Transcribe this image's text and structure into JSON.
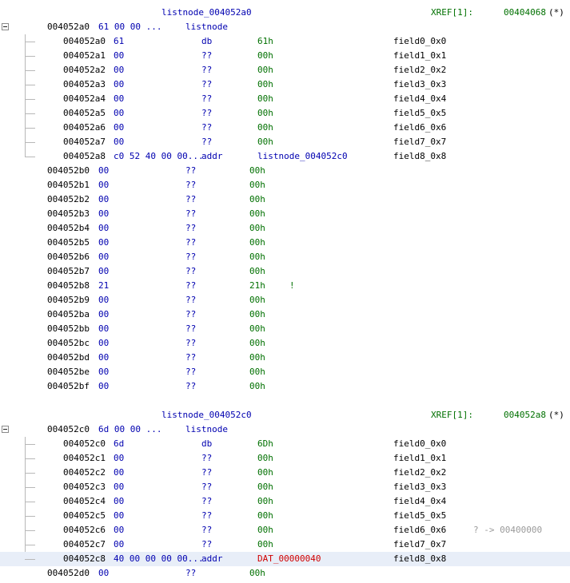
{
  "structs": [
    {
      "label": "listnode_004052a0",
      "xref_label": "XREF[1]:",
      "xref_addr": "00404068",
      "xref_suffix": "(*)",
      "header": {
        "addr": "004052a0",
        "bytes": "61 00 00 ...",
        "type": "listnode"
      },
      "fields": [
        {
          "addr": "004052a0",
          "bytes": "61",
          "mnemonic": "db",
          "operand": "61h",
          "name": "field0_0x0"
        },
        {
          "addr": "004052a1",
          "bytes": "00",
          "mnemonic": "??",
          "operand": "00h",
          "name": "field1_0x1"
        },
        {
          "addr": "004052a2",
          "bytes": "00",
          "mnemonic": "??",
          "operand": "00h",
          "name": "field2_0x2"
        },
        {
          "addr": "004052a3",
          "bytes": "00",
          "mnemonic": "??",
          "operand": "00h",
          "name": "field3_0x3"
        },
        {
          "addr": "004052a4",
          "bytes": "00",
          "mnemonic": "??",
          "operand": "00h",
          "name": "field4_0x4"
        },
        {
          "addr": "004052a5",
          "bytes": "00",
          "mnemonic": "??",
          "operand": "00h",
          "name": "field5_0x5"
        },
        {
          "addr": "004052a6",
          "bytes": "00",
          "mnemonic": "??",
          "operand": "00h",
          "name": "field6_0x6"
        },
        {
          "addr": "004052a7",
          "bytes": "00",
          "mnemonic": "??",
          "operand": "00h",
          "name": "field7_0x7"
        },
        {
          "addr": "004052a8",
          "bytes": "c0 52 40 00 00...",
          "mnemonic": "addr",
          "operand": "listnode_004052c0",
          "name": "field8_0x8"
        }
      ]
    },
    {
      "label": "listnode_004052c0",
      "xref_label": "XREF[1]:",
      "xref_addr": "004052a8",
      "xref_suffix": "(*)",
      "header": {
        "addr": "004052c0",
        "bytes": "6d 00 00 ...",
        "type": "listnode"
      },
      "fields": [
        {
          "addr": "004052c0",
          "bytes": "6d",
          "mnemonic": "db",
          "operand": "6Dh",
          "name": "field0_0x0"
        },
        {
          "addr": "004052c1",
          "bytes": "00",
          "mnemonic": "??",
          "operand": "00h",
          "name": "field1_0x1"
        },
        {
          "addr": "004052c2",
          "bytes": "00",
          "mnemonic": "??",
          "operand": "00h",
          "name": "field2_0x2"
        },
        {
          "addr": "004052c3",
          "bytes": "00",
          "mnemonic": "??",
          "operand": "00h",
          "name": "field3_0x3"
        },
        {
          "addr": "004052c4",
          "bytes": "00",
          "mnemonic": "??",
          "operand": "00h",
          "name": "field4_0x4"
        },
        {
          "addr": "004052c5",
          "bytes": "00",
          "mnemonic": "??",
          "operand": "00h",
          "name": "field5_0x5"
        },
        {
          "addr": "004052c6",
          "bytes": "00",
          "mnemonic": "??",
          "operand": "00h",
          "name": "field6_0x6",
          "ref": "? ->  00400000"
        },
        {
          "addr": "004052c7",
          "bytes": "00",
          "mnemonic": "??",
          "operand": "00h",
          "name": "field7_0x7"
        },
        {
          "addr": "004052c8",
          "bytes": "40 00 00 00 00...",
          "mnemonic": "addr",
          "operand": "DAT_00000040",
          "name": "field8_0x8",
          "operand_color": "red",
          "selected": true
        }
      ]
    }
  ],
  "loose_bytes_1": [
    {
      "addr": "004052b0",
      "bytes": "00",
      "mnemonic": "??",
      "operand": "00h"
    },
    {
      "addr": "004052b1",
      "bytes": "00",
      "mnemonic": "??",
      "operand": "00h"
    },
    {
      "addr": "004052b2",
      "bytes": "00",
      "mnemonic": "??",
      "operand": "00h"
    },
    {
      "addr": "004052b3",
      "bytes": "00",
      "mnemonic": "??",
      "operand": "00h"
    },
    {
      "addr": "004052b4",
      "bytes": "00",
      "mnemonic": "??",
      "operand": "00h"
    },
    {
      "addr": "004052b5",
      "bytes": "00",
      "mnemonic": "??",
      "operand": "00h"
    },
    {
      "addr": "004052b6",
      "bytes": "00",
      "mnemonic": "??",
      "operand": "00h"
    },
    {
      "addr": "004052b7",
      "bytes": "00",
      "mnemonic": "??",
      "operand": "00h"
    },
    {
      "addr": "004052b8",
      "bytes": "21",
      "mnemonic": "??",
      "operand": "21h",
      "char": "!"
    },
    {
      "addr": "004052b9",
      "bytes": "00",
      "mnemonic": "??",
      "operand": "00h"
    },
    {
      "addr": "004052ba",
      "bytes": "00",
      "mnemonic": "??",
      "operand": "00h"
    },
    {
      "addr": "004052bb",
      "bytes": "00",
      "mnemonic": "??",
      "operand": "00h"
    },
    {
      "addr": "004052bc",
      "bytes": "00",
      "mnemonic": "??",
      "operand": "00h"
    },
    {
      "addr": "004052bd",
      "bytes": "00",
      "mnemonic": "??",
      "operand": "00h"
    },
    {
      "addr": "004052be",
      "bytes": "00",
      "mnemonic": "??",
      "operand": "00h"
    },
    {
      "addr": "004052bf",
      "bytes": "00",
      "mnemonic": "??",
      "operand": "00h"
    }
  ],
  "loose_bytes_2": [
    {
      "addr": "004052d0",
      "bytes": "00",
      "mnemonic": "??",
      "operand": "00h"
    }
  ],
  "icons": {
    "collapse": "collapse-minus-icon"
  },
  "colors": {
    "address": "#000000",
    "bytes": "#0000b0",
    "operand": "#007000",
    "label": "#0000b0",
    "xref": "#007000",
    "error": "#d00000",
    "selection": "#e8eef8"
  }
}
